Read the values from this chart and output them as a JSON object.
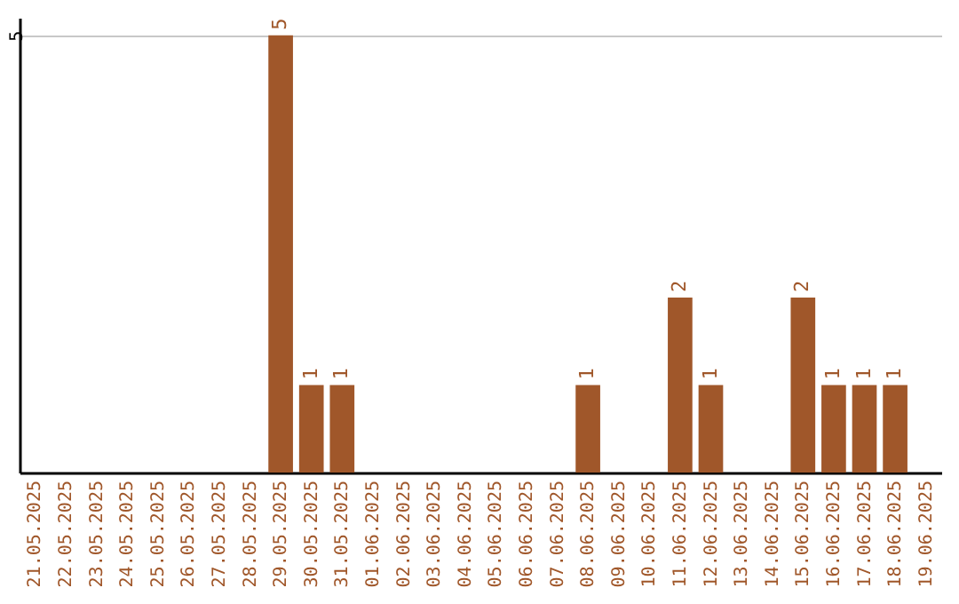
{
  "chart_data": {
    "type": "bar",
    "categories": [
      "21.05.2025",
      "22.05.2025",
      "23.05.2025",
      "24.05.2025",
      "25.05.2025",
      "26.05.2025",
      "27.05.2025",
      "28.05.2025",
      "29.05.2025",
      "30.05.2025",
      "31.05.2025",
      "01.06.2025",
      "02.06.2025",
      "03.06.2025",
      "04.06.2025",
      "05.06.2025",
      "06.06.2025",
      "07.06.2025",
      "08.06.2025",
      "09.06.2025",
      "10.06.2025",
      "11.06.2025",
      "12.06.2025",
      "13.06.2025",
      "14.06.2025",
      "15.06.2025",
      "16.06.2025",
      "17.06.2025",
      "18.06.2025",
      "19.06.2025"
    ],
    "values": [
      0,
      0,
      0,
      0,
      0,
      0,
      0,
      0,
      5,
      1,
      1,
      0,
      0,
      0,
      0,
      0,
      0,
      0,
      1,
      0,
      0,
      2,
      1,
      0,
      0,
      2,
      1,
      1,
      1,
      0
    ],
    "value_labels": [
      null,
      null,
      null,
      null,
      null,
      null,
      null,
      null,
      "5",
      "1",
      "1",
      null,
      null,
      null,
      null,
      null,
      null,
      null,
      "1",
      null,
      null,
      "2",
      "1",
      null,
      null,
      "2",
      "1",
      "1",
      "1",
      null
    ],
    "color": "#a0572a",
    "ylim": [
      0,
      5.2
    ],
    "yticks": [
      5
    ],
    "grid": "y"
  }
}
